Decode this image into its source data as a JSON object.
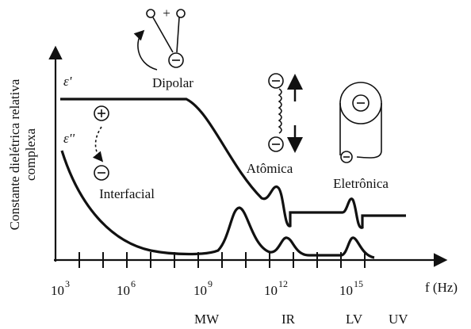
{
  "y_axis_label": [
    "Constante dielétrica relativa",
    "complexa"
  ],
  "x_axis_label": "f (Hz)",
  "x_ticks": [
    {
      "base": "10",
      "exp": "3"
    },
    {
      "base": "10",
      "exp": "6"
    },
    {
      "base": "10",
      "exp": "9"
    },
    {
      "base": "10",
      "exp": "12"
    },
    {
      "base": "10",
      "exp": "15"
    }
  ],
  "bands": [
    "MW",
    "IR",
    "LV",
    "UV"
  ],
  "curves": [
    "ε'",
    "ε''"
  ],
  "dipole_sign": "+",
  "mechanisms": [
    "Dipolar",
    "Interfacial",
    "Atômica",
    "Eletrônica"
  ]
}
